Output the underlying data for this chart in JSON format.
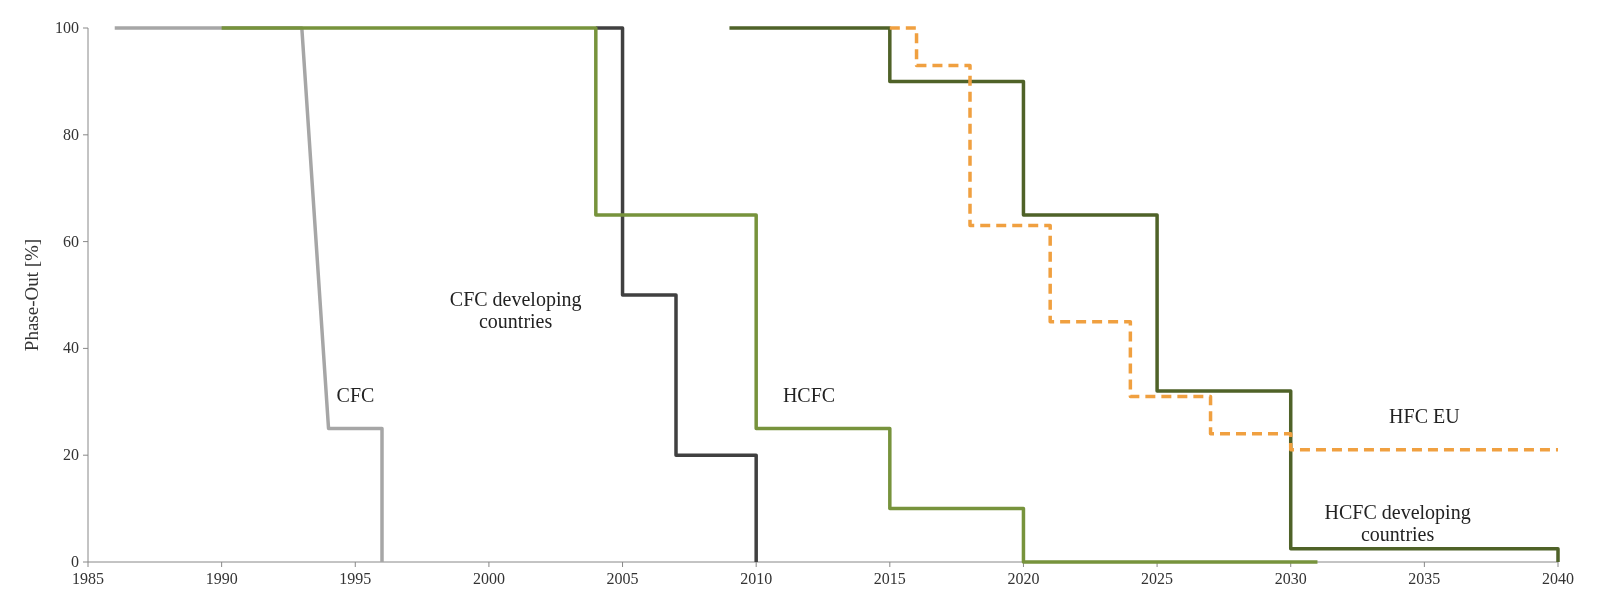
{
  "chart_data": {
    "type": "line",
    "ylabel": "Phase-Out [%]",
    "xlim": [
      1985,
      2040
    ],
    "xticks": [
      1985,
      1990,
      1995,
      2000,
      2005,
      2010,
      2015,
      2020,
      2025,
      2030,
      2035,
      2040
    ],
    "ylim": [
      0,
      100
    ],
    "yticks": [
      0,
      20,
      40,
      60,
      80,
      100
    ],
    "grid": false,
    "series": [
      {
        "name": "CFC",
        "color": "#a6a6a6",
        "x": [
          1986,
          1993,
          1994,
          1996,
          1996
        ],
        "values": [
          100,
          100,
          25,
          25,
          0
        ]
      },
      {
        "name": "CFC developing countries",
        "color": "#404040",
        "x": [
          2004,
          2005,
          2005,
          2007,
          2007,
          2010,
          2010
        ],
        "values": [
          100,
          100,
          50,
          50,
          20,
          20,
          0
        ]
      },
      {
        "name": "HCFC",
        "color": "#77933c",
        "x": [
          1990,
          2004,
          2004,
          2010,
          2010,
          2015,
          2015,
          2020,
          2020,
          2031
        ],
        "values": [
          100,
          100,
          65,
          65,
          25,
          25,
          10,
          10,
          0,
          0
        ]
      },
      {
        "name": "HCFC developing countries",
        "color": "#4f6228",
        "x": [
          2009,
          2015,
          2015,
          2020,
          2020,
          2025,
          2025,
          2030,
          2030,
          2040,
          2040
        ],
        "values": [
          100,
          100,
          90,
          90,
          65,
          65,
          32,
          32,
          2.5,
          2.5,
          0
        ]
      },
      {
        "name": "HFC EU",
        "color": "#f0a040",
        "line_style": "dashed",
        "x": [
          2015,
          2016,
          2016,
          2018,
          2018,
          2021,
          2021,
          2024,
          2024,
          2027,
          2027,
          2030,
          2030,
          2040
        ],
        "values": [
          100,
          100,
          93,
          93,
          63,
          63,
          45,
          45,
          31,
          31,
          24,
          24,
          21,
          21
        ]
      }
    ]
  }
}
